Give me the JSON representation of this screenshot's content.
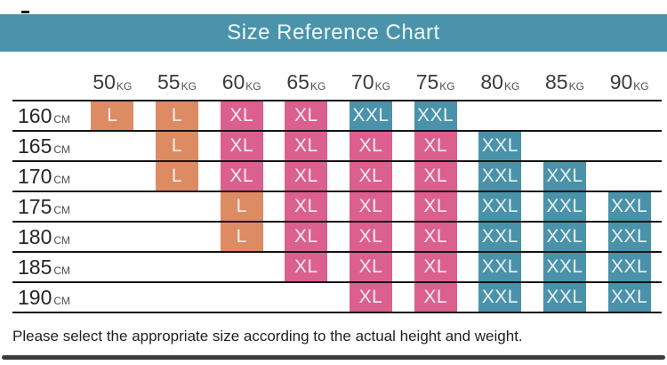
{
  "banner": {
    "title": "Size Reference Chart"
  },
  "footer": {
    "note": "Please select the appropriate size according to the actual height and weight."
  },
  "colors": {
    "banner": "#4a93ab",
    "banner_text": "#eefafa",
    "header_text": "#3b3b3b",
    "row_label_text": "#262626",
    "unit_text": "#4f4f4f",
    "line": "#141414",
    "cell_text": "rgba(255,255,255,0.88)",
    "footer_text": "#1f1f1f",
    "bottom_bar": "#3d3d3d"
  },
  "chart_data": {
    "type": "table",
    "title": "Size Reference Chart",
    "weight_unit": "KG",
    "height_unit": "CM",
    "weights": [
      "50",
      "55",
      "60",
      "65",
      "70",
      "75",
      "80",
      "85",
      "90"
    ],
    "heights": [
      "160",
      "165",
      "170",
      "175",
      "180",
      "185",
      "190"
    ],
    "cells": [
      [
        "L",
        "L",
        "XL",
        "XL",
        "XXL",
        "XXL",
        "",
        "",
        ""
      ],
      [
        "",
        "L",
        "XL",
        "XL",
        "XL",
        "XL",
        "XXL",
        "",
        ""
      ],
      [
        "",
        "L",
        "XL",
        "XL",
        "XL",
        "XL",
        "XXL",
        "XXL",
        ""
      ],
      [
        "",
        "",
        "L",
        "XL",
        "XL",
        "XL",
        "XXL",
        "XXL",
        "XXL"
      ],
      [
        "",
        "",
        "L",
        "XL",
        "XL",
        "XL",
        "XXL",
        "XXL",
        "XXL"
      ],
      [
        "",
        "",
        "",
        "XL",
        "XL",
        "XL",
        "XXL",
        "XXL",
        "XXL"
      ],
      [
        "",
        "",
        "",
        "",
        "XL",
        "XL",
        "XXL",
        "XXL",
        "XXL"
      ]
    ],
    "size_colors": {
      "L": "#dd8b63",
      "XL": "#dc608e",
      "XXL": "#4a92a9"
    },
    "note": "Please select the appropriate size according to the actual height and weight."
  }
}
